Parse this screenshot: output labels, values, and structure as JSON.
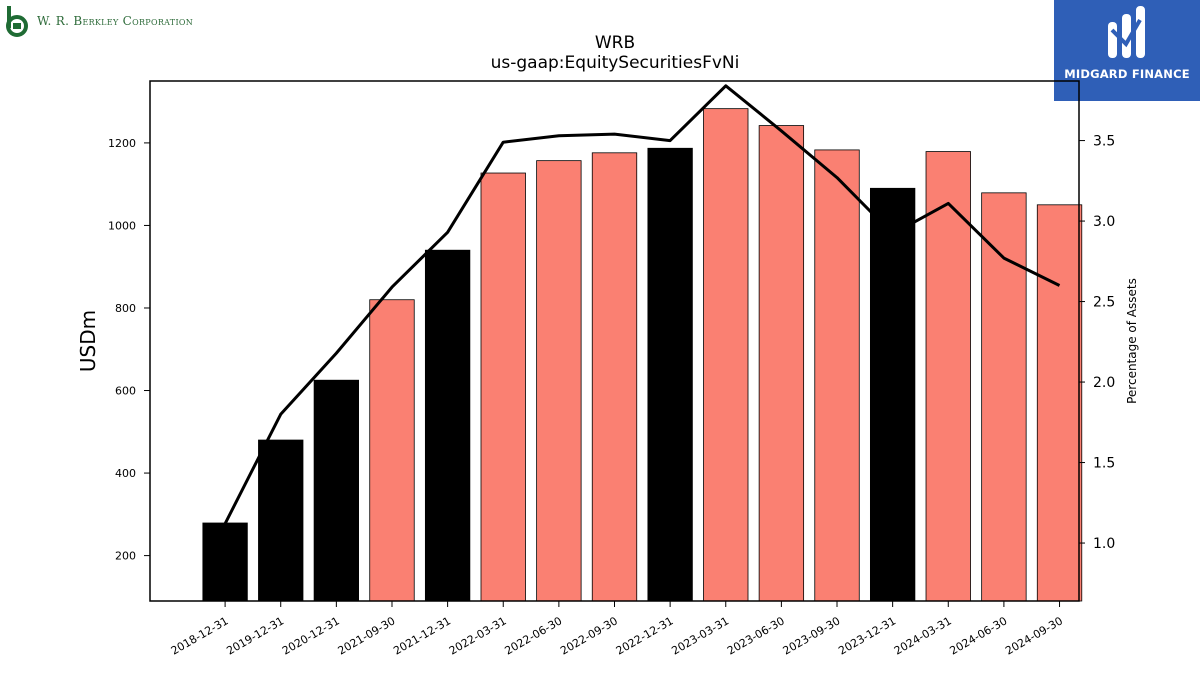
{
  "branding": {
    "company_name": "W. R. Berkley Corporation",
    "partner_name": "MIDGARD FINANCE",
    "brand_green": "#1f6b34",
    "partner_blue": "#2f5fb7",
    "icons": [
      "berkley-b-logo-icon",
      "midgard-m-logo-icon"
    ]
  },
  "chart_data": {
    "type": "bar",
    "title": "WRB",
    "subtitle": "us-gaap:EquitySecuritiesFvNi",
    "ylabel": "USDm",
    "y2label": "Percentage of Assets",
    "ylim": [
      90,
      1350
    ],
    "y2lim": [
      0.64,
      3.87
    ],
    "yticks": [
      200,
      400,
      600,
      800,
      1000,
      1200
    ],
    "y2ticks": [
      1.0,
      1.5,
      2.0,
      2.5,
      3.0,
      3.5
    ],
    "y2tick_labels": [
      "1.0",
      "1.5",
      "2.0",
      "2.5",
      "3.0",
      "3.5"
    ],
    "categories": [
      "2018-12-31",
      "2019-12-31",
      "2020-12-31",
      "2021-09-30",
      "2021-12-31",
      "2022-03-31",
      "2022-06-30",
      "2022-09-30",
      "2022-12-31",
      "2023-03-31",
      "2023-06-30",
      "2023-09-30",
      "2023-12-31",
      "2024-03-31",
      "2024-06-30",
      "2024-09-30"
    ],
    "series": [
      {
        "type": "bar",
        "values": [
          279,
          480,
          625,
          820,
          940,
          1127,
          1157,
          1176,
          1187,
          1283,
          1242,
          1183,
          1090,
          1179,
          1079,
          1050
        ],
        "bar_colors": [
          "#000000",
          "#000000",
          "#000000",
          "#fa8072",
          "#000000",
          "#fa8072",
          "#fa8072",
          "#fa8072",
          "#000000",
          "#fa8072",
          "#fa8072",
          "#fa8072",
          "#000000",
          "#fa8072",
          "#fa8072",
          "#fa8072"
        ]
      },
      {
        "type": "line",
        "axis": "right",
        "color": "#000000",
        "values": [
          1.12,
          1.8,
          2.18,
          2.59,
          2.93,
          3.49,
          3.53,
          3.54,
          3.5,
          3.84,
          3.56,
          3.27,
          2.92,
          3.11,
          2.77,
          2.6
        ]
      }
    ],
    "grid": false,
    "legend": "none"
  }
}
